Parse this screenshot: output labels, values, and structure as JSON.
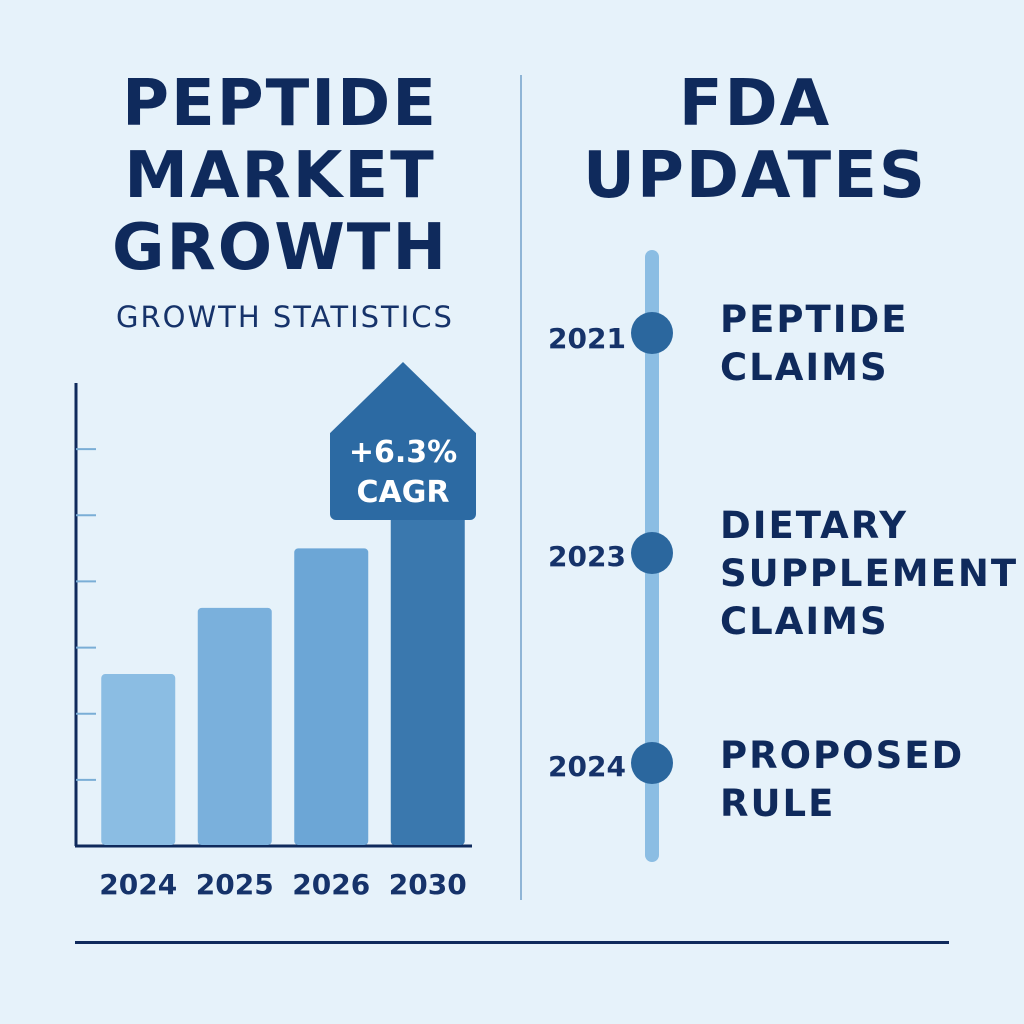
{
  "left_panel": {
    "title_lines": [
      "PEPTIDE",
      "MARKET",
      "GROWTH"
    ],
    "subtitle": "GROWTH STATISTICS"
  },
  "right_panel": {
    "title_lines": [
      "FDA",
      "UPDATES"
    ]
  },
  "chart_data": {
    "type": "bar",
    "categories": [
      "2024",
      "2025",
      "2026",
      "2030"
    ],
    "values": [
      2.6,
      3.6,
      4.5,
      5.3
    ],
    "ylim": [
      0,
      7
    ],
    "yticks": [
      1,
      2,
      3,
      4,
      5,
      6
    ],
    "grid": false,
    "callout": {
      "value": "+6.3%",
      "label": "CAGR"
    },
    "colors": [
      "#8bbde3",
      "#7ab0dc",
      "#6ca6d6",
      "#3a78ae"
    ]
  },
  "timeline": {
    "items": [
      {
        "year": "2021",
        "label_lines": [
          "PEPTIDE",
          "CLAIMS"
        ]
      },
      {
        "year": "2023",
        "label_lines": [
          "DIETARY",
          "SUPPLEMENT",
          "CLAIMS"
        ]
      },
      {
        "year": "2024",
        "label_lines": [
          "PROPOSED",
          "RULE"
        ]
      }
    ]
  }
}
